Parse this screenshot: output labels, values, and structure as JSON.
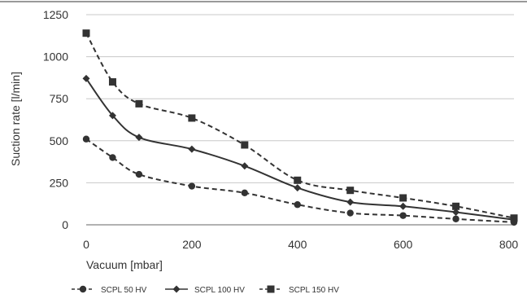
{
  "chart_data": {
    "type": "line",
    "xlabel": "Vacuum [mbar]",
    "ylabel": "Suction rate [l/min]",
    "xlim": [
      0,
      810
    ],
    "ylim": [
      0,
      1250
    ],
    "x_ticks": [
      "0",
      "200",
      "400",
      "600",
      "800"
    ],
    "y_ticks": [
      "0",
      "250",
      "500",
      "750",
      "1000",
      "1250"
    ],
    "grid": "horizontal",
    "legend_position": "bottom-left",
    "series": [
      {
        "name": "SCPL 50 HV",
        "marker": "circle",
        "dash": "dashed",
        "color": "#333333",
        "x": [
          0,
          50,
          100,
          200,
          300,
          400,
          500,
          600,
          700,
          810
        ],
        "y": [
          510,
          400,
          300,
          230,
          190,
          120,
          70,
          55,
          35,
          15
        ]
      },
      {
        "name": "SCPL 100 HV",
        "marker": "diamond",
        "dash": "solid",
        "color": "#333333",
        "x": [
          0,
          50,
          100,
          200,
          300,
          400,
          500,
          600,
          700,
          810
        ],
        "y": [
          870,
          650,
          520,
          450,
          350,
          220,
          135,
          110,
          75,
          30
        ]
      },
      {
        "name": "SCPL 150 HV",
        "marker": "square",
        "dash": "dashed",
        "color": "#333333",
        "x": [
          0,
          50,
          100,
          200,
          300,
          400,
          500,
          600,
          700,
          810
        ],
        "y": [
          1140,
          850,
          720,
          635,
          475,
          265,
          205,
          160,
          110,
          40
        ]
      }
    ]
  }
}
